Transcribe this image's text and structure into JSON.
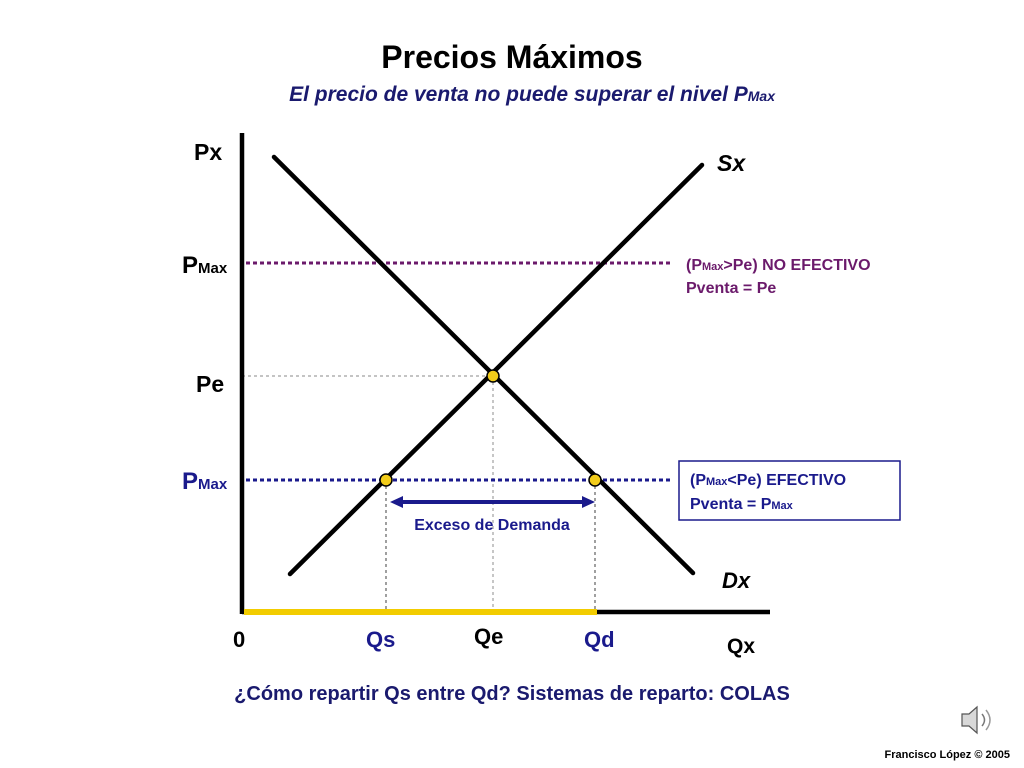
{
  "slide": {
    "title": "Precios Máximos",
    "subtitle_main": "El precio de venta no puede superar el nivel P",
    "subtitle_sub": "Max",
    "question": "¿Cómo repartir Qs entre Qd?  Sistemas de reparto: COLAS",
    "credit": "Francisco López © 2005",
    "speaker_icon": "speaker-icon"
  },
  "axes": {
    "y_label": "Px",
    "x_label": "Qx",
    "origin": "0"
  },
  "curves": {
    "supply": "Sx",
    "demand": "Dx"
  },
  "labels": {
    "pe": "Pe",
    "pmax_main": "P",
    "pmax_sub": "Max",
    "qs": "Qs",
    "qe": "Qe",
    "qd": "Qd",
    "excess": "Exceso de Demanda"
  },
  "notes": {
    "high": {
      "line1_a": "(P",
      "line1_sub": "Max",
      "line1_b": ">Pe)  NO EFECTIVO",
      "line2": "Pventa = Pe"
    },
    "low": {
      "line1_a": "(P",
      "line1_sub": "Max",
      "line1_b": "<Pe)  EFECTIVO",
      "line2_a": "Pventa = P",
      "line2_sub": "Max"
    }
  },
  "colors": {
    "title": "#000000",
    "subtitle": "#1a1a6e",
    "axis_labels": "#000000",
    "pmax_high_line": "#6b1a6b",
    "pmax_low_line": "#1a1a8c",
    "note_high": "#6b1a6b",
    "note_low": "#1a1a8c",
    "q_labels": "#1a1a8c",
    "excess": "#1a1a8c",
    "highlight_bar": "#f2cc00",
    "points": "#f2cc1a",
    "guide": "#a0a0a0"
  }
}
